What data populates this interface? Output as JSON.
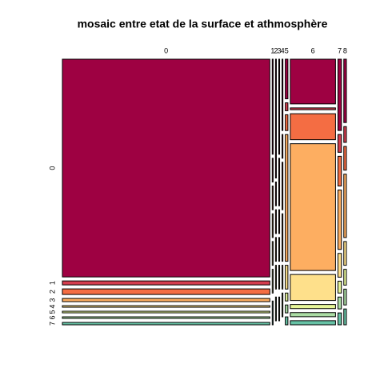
{
  "chart_data": {
    "type": "mosaic",
    "title": "mosaic entre etat de la surface et athmosphère",
    "categories": [
      "0",
      "1",
      "2",
      "3",
      "4",
      "5",
      "6",
      "7",
      "8"
    ],
    "series": [
      {
        "name": "0",
        "color": "#9E0142",
        "values": [
          2190,
          4,
          5,
          4,
          3,
          5,
          98,
          12,
          8
        ]
      },
      {
        "name": "1",
        "color": "#D53E4F",
        "values": [
          40,
          1,
          1,
          2,
          1,
          1,
          4,
          3,
          2
        ]
      },
      {
        "name": "2",
        "color": "#F46D43",
        "values": [
          56,
          1,
          1,
          1,
          2,
          2,
          57,
          5,
          3
        ]
      },
      {
        "name": "3",
        "color": "#FDAE61",
        "values": [
          32,
          1,
          1,
          1,
          2,
          16,
          278,
          10,
          8
        ]
      },
      {
        "name": "4",
        "color": "#FEE08B",
        "values": [
          16,
          1,
          1,
          1,
          1,
          3,
          57,
          4,
          3
        ]
      },
      {
        "name": "5",
        "color": "#E6F598",
        "values": [
          16,
          1,
          0,
          0,
          1,
          1,
          9,
          2,
          2
        ]
      },
      {
        "name": "6",
        "color": "#ABDDA4",
        "values": [
          16,
          0,
          1,
          1,
          0,
          1,
          9,
          2,
          2
        ]
      },
      {
        "name": "7",
        "color": "#66C2A5",
        "values": [
          24,
          1,
          0,
          0,
          0,
          1,
          9,
          2,
          2
        ]
      }
    ]
  }
}
